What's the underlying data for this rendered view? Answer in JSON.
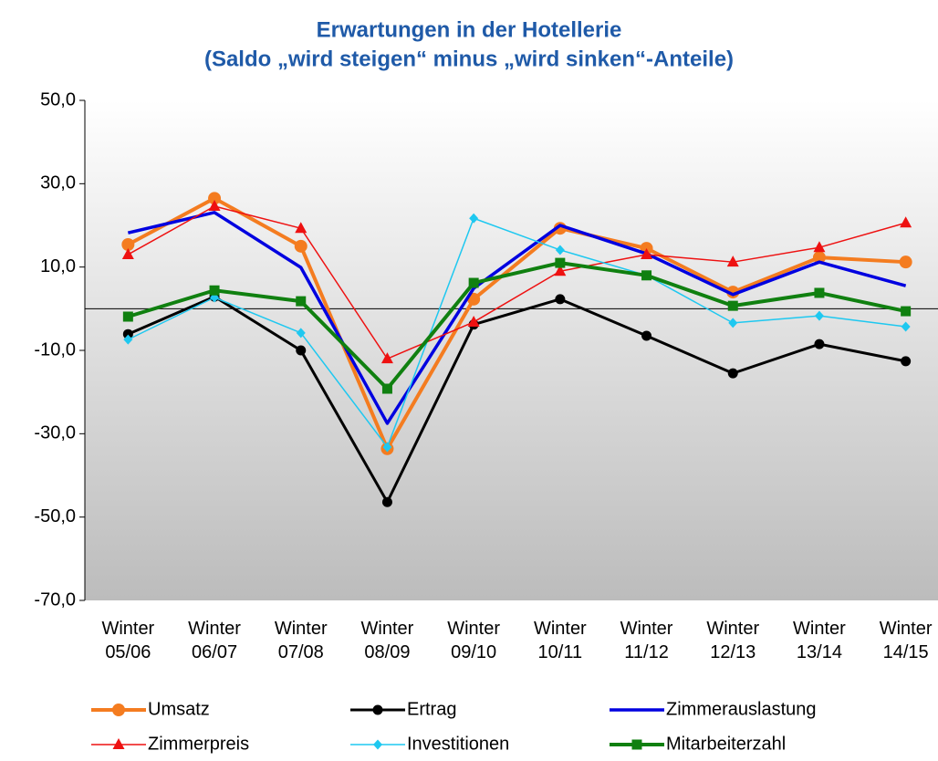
{
  "chart_data": {
    "type": "line",
    "title": "Erwartungen in der Hotellerie",
    "subtitle": "(Saldo „wird steigen“ minus „wird sinken“-Anteile)",
    "categories": [
      "Winter 05/06",
      "Winter 06/07",
      "Winter 07/08",
      "Winter 08/09",
      "Winter 09/10",
      "Winter 10/11",
      "Winter 11/12",
      "Winter 12/13",
      "Winter 13/14",
      "Winter 14/15"
    ],
    "ylim": [
      -70,
      50
    ],
    "yticks": [
      {
        "value": -70,
        "label": "-70,0"
      },
      {
        "value": -50,
        "label": "-50,0"
      },
      {
        "value": -30,
        "label": "-30,0"
      },
      {
        "value": -10,
        "label": "-10,0"
      },
      {
        "value": 10,
        "label": "10,0"
      },
      {
        "value": 30,
        "label": "30,0"
      },
      {
        "value": 50,
        "label": "50,0"
      }
    ],
    "series": [
      {
        "name": "Umsatz",
        "color": "#f47c20",
        "marker": "circle",
        "values": [
          15.4,
          26.5,
          15.0,
          -33.6,
          2.3,
          19.3,
          14.5,
          4.0,
          12.3,
          11.2
        ]
      },
      {
        "name": "Ertrag",
        "color": "#000000",
        "marker": "dot",
        "values": [
          -6.1,
          2.9,
          -10.0,
          -46.4,
          -3.8,
          2.3,
          -6.5,
          -15.5,
          -8.5,
          -12.6
        ]
      },
      {
        "name": "Zimmerauslastung",
        "color": "#0000e0",
        "marker": "none",
        "values": [
          18.2,
          23.1,
          9.9,
          -27.5,
          4.9,
          20.0,
          13.2,
          3.4,
          11.2,
          5.5
        ]
      },
      {
        "name": "Zimmerpreis",
        "color": "#ee1111",
        "marker": "triangle",
        "values": [
          13.0,
          24.6,
          19.3,
          -12.0,
          -3.2,
          9.0,
          13.0,
          11.2,
          14.7,
          20.6
        ]
      },
      {
        "name": "Investitionen",
        "color": "#1ec8f0",
        "marker": "diamond",
        "values": [
          -7.4,
          2.7,
          -5.8,
          -33.2,
          21.7,
          14.1,
          8.0,
          -3.4,
          -1.7,
          -4.3
        ]
      },
      {
        "name": "Mitarbeiterzahl",
        "color": "#108010",
        "marker": "square",
        "values": [
          -1.9,
          4.4,
          1.8,
          -19.2,
          6.2,
          11.0,
          8.0,
          0.7,
          3.8,
          -0.6
        ]
      }
    ]
  }
}
